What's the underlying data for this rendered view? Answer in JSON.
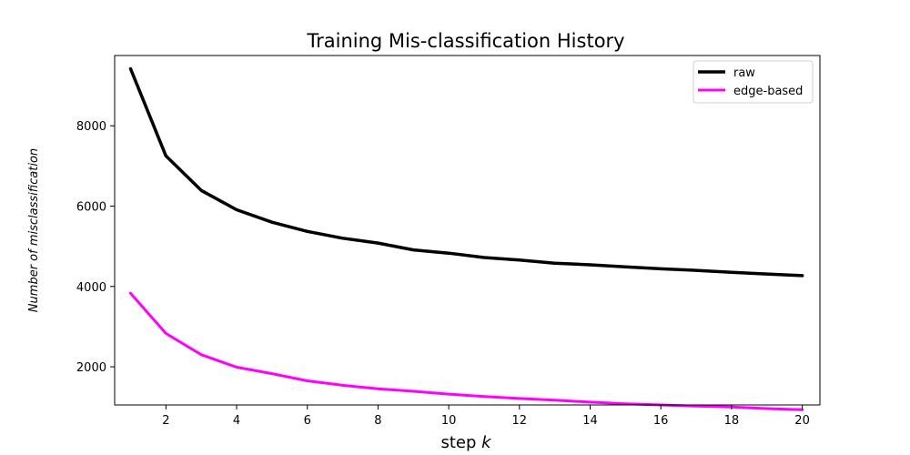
{
  "chart_data": {
    "type": "line",
    "title": "Training Mis-classification History",
    "xlabel_text": "step ",
    "xlabel_var": "k",
    "ylabel": "Number of misclassification",
    "x": [
      1,
      2,
      3,
      4,
      5,
      6,
      7,
      8,
      9,
      10,
      11,
      12,
      13,
      14,
      15,
      16,
      17,
      18,
      19,
      20
    ],
    "xlim": [
      0.55,
      20.5
    ],
    "ylim": [
      1050,
      9750
    ],
    "xticks": [
      2,
      4,
      6,
      8,
      10,
      12,
      14,
      16,
      18,
      20
    ],
    "yticks": [
      2000,
      4000,
      6000,
      8000
    ],
    "grid": false,
    "legend_position": "top-right",
    "series": [
      {
        "name": "raw",
        "color": "#000000",
        "values": [
          9420,
          7250,
          6390,
          5910,
          5600,
          5370,
          5200,
          5080,
          4910,
          4830,
          4720,
          4660,
          4580,
          4540,
          4490,
          4440,
          4400,
          4350,
          4310,
          4270
        ]
      },
      {
        "name": "edge-based",
        "color": "#ff00ff",
        "values": [
          3830,
          2830,
          2300,
          1990,
          1830,
          1650,
          1540,
          1450,
          1390,
          1320,
          1260,
          1210,
          1170,
          1120,
          1080,
          1050,
          1020,
          1000,
          960,
          930
        ]
      }
    ]
  }
}
